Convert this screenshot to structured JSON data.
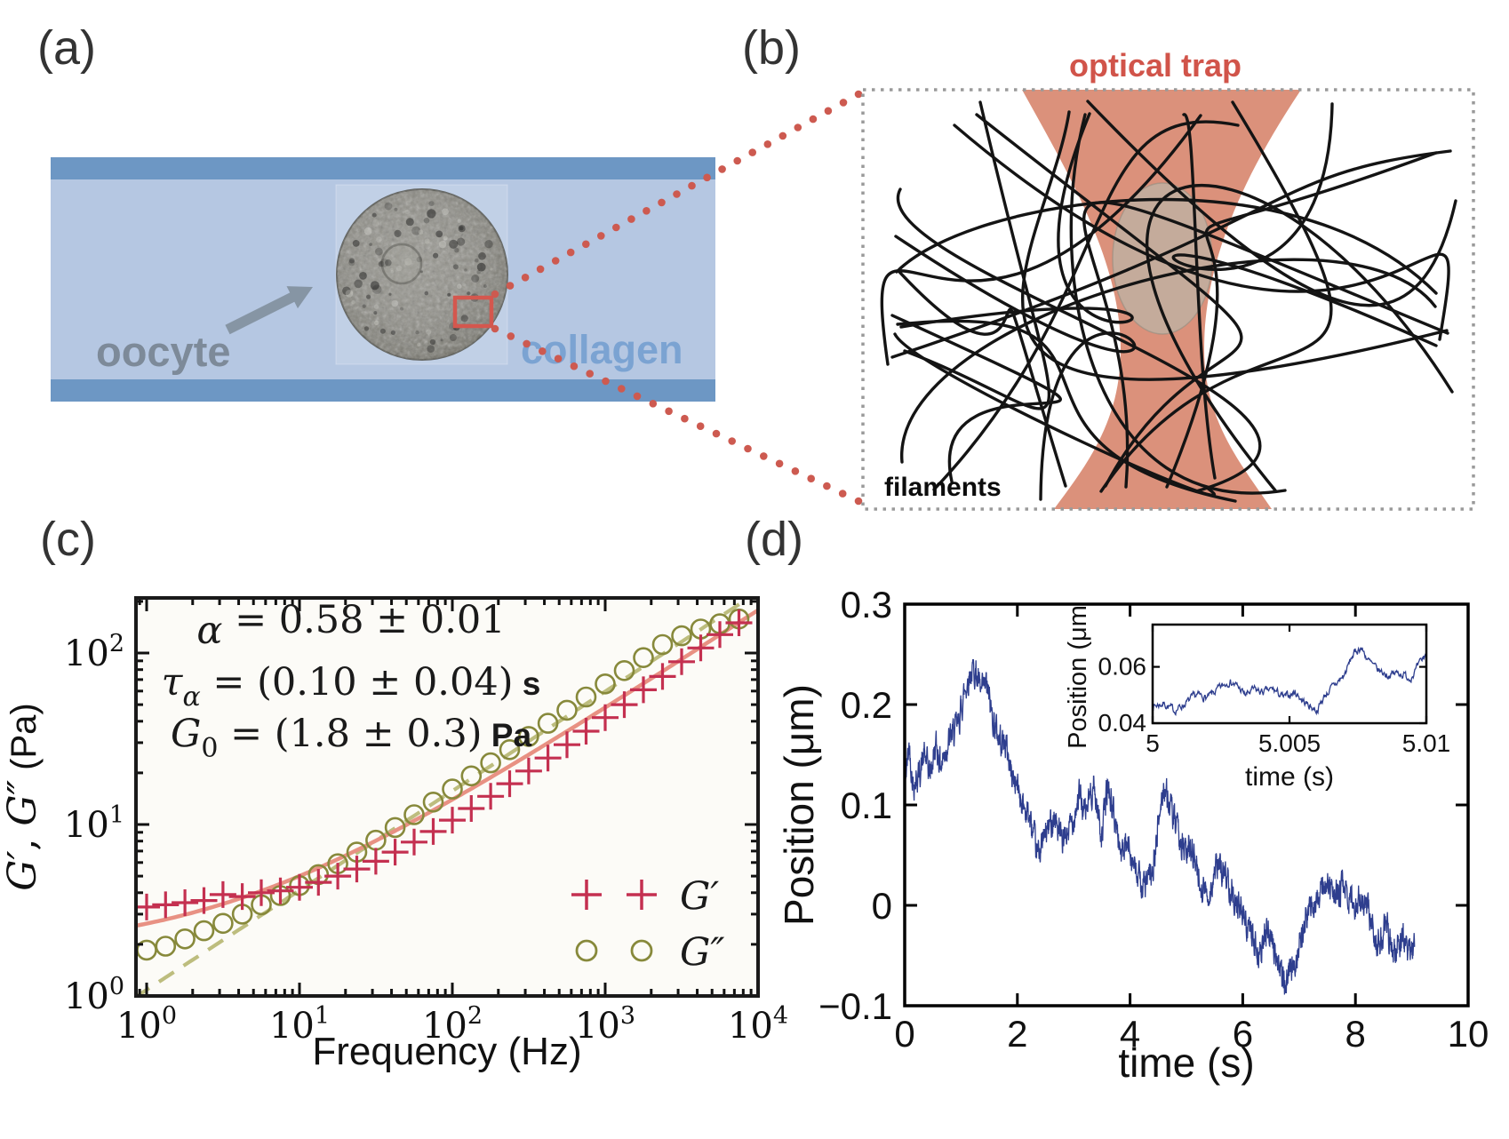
{
  "figure": {
    "background": "#ffffff",
    "panel_labels": {
      "a": "(a)",
      "b": "(b)",
      "c": "(c)",
      "d": "(d)"
    }
  },
  "panel_a": {
    "oocyte_label": "oocyte",
    "collagen_label": "collagen",
    "colors": {
      "channel_wall": "#6d97c4",
      "channel_fill": "#b5c7e2",
      "oocyte_text": "#7d8a99",
      "collagen_text": "#7ba3d2",
      "highlight_box": "#d4574e",
      "connector_dots": "#cd5a50",
      "arrow": "#8695a4"
    }
  },
  "panel_b": {
    "title": "optical trap",
    "filaments_label": "filaments",
    "colors": {
      "title_text": "#d1544a",
      "beam": "#d98b74",
      "bead": "#b6bbae",
      "filament": "#141414",
      "border": "#9a9a9a"
    }
  },
  "chart_data": [
    {
      "id": "moduli_vs_frequency",
      "type": "scatter",
      "x_scale": "log",
      "y_scale": "log",
      "xlabel": "Frequency (Hz)",
      "ylabel": {
        "g_prime": "G′",
        "comma": ", ",
        "g_double_prime": "G″",
        "units": " (Pa)"
      },
      "xlim_Hz": [
        0.85,
        10000
      ],
      "ylim_Pa": [
        1.0,
        210
      ],
      "x_tick_exponents": [
        0,
        1,
        2,
        3,
        4
      ],
      "y_tick_exponents": [
        0,
        1,
        2
      ],
      "annotations": [
        {
          "symbol": "α",
          "subscript": "",
          "value": " = 0.58 ± 0.01",
          "unit": ""
        },
        {
          "symbol": "τ",
          "subscript": "α",
          "value": " = (0.10 ± 0.04)",
          "unit": " s"
        },
        {
          "symbol": "G",
          "subscript": "0",
          "value": " = (1.8 ± 0.3)",
          "unit": " Pa"
        }
      ],
      "fit_parameters": {
        "alpha": 0.58,
        "tau_s": 0.1,
        "G0_Pa": 1.8
      },
      "legend": {
        "position": "lower right",
        "entries": [
          {
            "label": "G′",
            "marker": "cross",
            "color": "#c43050"
          },
          {
            "label": "G″",
            "marker": "circle",
            "color": "#87893b"
          }
        ]
      },
      "series": [
        {
          "name": "G′",
          "marker": "cross",
          "color": "#c43050",
          "fit_line": {
            "style": "solid",
            "color": "#e89183"
          },
          "f_Hz": [
            1.0,
            1.33,
            1.78,
            2.37,
            3.16,
            4.22,
            5.62,
            7.5,
            10,
            13.3,
            17.8,
            23.7,
            31.6,
            42.2,
            56.2,
            75,
            100,
            133,
            178,
            237,
            316,
            422,
            562,
            750,
            1000,
            1334,
            1778,
            2371,
            3162,
            4217,
            5623,
            7499
          ],
          "G_Pa": [
            3.3,
            3.4,
            3.5,
            3.6,
            3.9,
            3.8,
            4.0,
            4.1,
            4.3,
            4.6,
            5.0,
            5.5,
            6.1,
            6.9,
            7.9,
            9.1,
            10.6,
            12.4,
            14.6,
            17.3,
            20.5,
            24.4,
            29.2,
            35,
            42,
            50,
            61,
            73,
            89,
            107,
            128,
            150
          ]
        },
        {
          "name": "G″",
          "marker": "circle",
          "color": "#87893b",
          "fit_line": {
            "style": "dashed",
            "color": "#bdbd7e"
          },
          "f_Hz": [
            1.0,
            1.33,
            1.78,
            2.37,
            3.16,
            4.22,
            5.62,
            7.5,
            10,
            13.3,
            17.8,
            23.7,
            31.6,
            42.2,
            56.2,
            75,
            100,
            133,
            178,
            237,
            316,
            422,
            562,
            750,
            1000,
            1334,
            1778,
            2371,
            3162,
            4217,
            5623,
            7499
          ],
          "G_Pa": [
            1.85,
            1.95,
            2.15,
            2.4,
            2.65,
            3.0,
            3.4,
            3.85,
            4.4,
            5.1,
            5.9,
            6.9,
            8.1,
            9.6,
            11.4,
            13.5,
            16.1,
            19.2,
            22.9,
            27.3,
            32.6,
            38.9,
            46.4,
            55.4,
            66,
            79,
            94,
            112,
            126,
            138,
            148,
            158
          ]
        }
      ]
    },
    {
      "id": "bead_position_trace",
      "type": "line",
      "xlabel": "time (s)",
      "ylabel": "Position (μm)",
      "xlim_s": [
        0,
        10
      ],
      "ylim_um": [
        -0.1,
        0.3
      ],
      "x_tick_values": [
        0,
        2,
        4,
        6,
        8,
        10
      ],
      "x_ticks": [
        "0",
        "2",
        "4",
        "6",
        "8",
        "10"
      ],
      "y_tick_values": [
        -0.1,
        0,
        0.1,
        0.2,
        0.3
      ],
      "y_ticks": [
        "−0.1",
        "0",
        "0.1",
        "0.2",
        "0.3"
      ],
      "line_color": "#2e3e8e",
      "t_end_s": 9.05,
      "noise_band_um": 0.02,
      "anchors": {
        "t_s": [
          0,
          0.08,
          0.15,
          0.25,
          0.35,
          0.45,
          0.55,
          0.65,
          0.75,
          0.85,
          0.95,
          1.05,
          1.15,
          1.25,
          1.35,
          1.45,
          1.55,
          1.65,
          1.8,
          1.9,
          2.0,
          2.1,
          2.2,
          2.35,
          2.5,
          2.65,
          2.8,
          2.95,
          3.1,
          3.2,
          3.35,
          3.5,
          3.6,
          3.75,
          3.85,
          4.0,
          4.1,
          4.25,
          4.4,
          4.5,
          4.6,
          4.7,
          4.85,
          5.0,
          5.1,
          5.25,
          5.4,
          5.55,
          5.7,
          5.85,
          6.0,
          6.15,
          6.3,
          6.45,
          6.6,
          6.75,
          6.9,
          7.05,
          7.2,
          7.35,
          7.5,
          7.65,
          7.8,
          7.95,
          8.1,
          8.25,
          8.4,
          8.55,
          8.7,
          8.85,
          8.95,
          9.05
        ],
        "position_um": [
          0.12,
          0.16,
          0.12,
          0.13,
          0.15,
          0.13,
          0.16,
          0.14,
          0.16,
          0.17,
          0.18,
          0.21,
          0.23,
          0.235,
          0.21,
          0.22,
          0.19,
          0.17,
          0.16,
          0.13,
          0.12,
          0.1,
          0.09,
          0.05,
          0.07,
          0.09,
          0.06,
          0.08,
          0.11,
          0.09,
          0.12,
          0.07,
          0.12,
          0.08,
          0.05,
          0.06,
          0.03,
          0.02,
          0.03,
          0.08,
          0.12,
          0.1,
          0.07,
          0.05,
          0.06,
          0.02,
          0.01,
          0.04,
          0.03,
          0.01,
          -0.01,
          -0.03,
          -0.05,
          -0.02,
          -0.05,
          -0.08,
          -0.06,
          -0.03,
          0.0,
          0.01,
          0.02,
          0.01,
          0.02,
          0.0,
          0.01,
          -0.01,
          -0.04,
          -0.02,
          -0.05,
          -0.03,
          -0.05,
          -0.04
        ]
      }
    },
    {
      "id": "bead_position_trace_inset",
      "type": "line",
      "xlabel": "time (s)",
      "ylabel": "Position (μm",
      "xlim_s": [
        5,
        5.01
      ],
      "ylim_um": [
        0.04,
        0.075
      ],
      "x_tick_values": [
        5,
        5.005,
        5.01
      ],
      "x_ticks": [
        "5",
        "5.005",
        "5.01"
      ],
      "y_tick_values": [
        0.04,
        0.06
      ],
      "y_ticks": [
        "0.04",
        "0.06"
      ],
      "line_color": "#2e3e8e",
      "noise_band_um": 0.002,
      "anchors": {
        "t_s": [
          5.0,
          5.0004,
          5.0008,
          5.0012,
          5.0016,
          5.002,
          5.0024,
          5.0028,
          5.0031,
          5.0034,
          5.0037,
          5.004,
          5.0044,
          5.0048,
          5.0052,
          5.0056,
          5.006,
          5.0063,
          5.0066,
          5.007,
          5.0073,
          5.0076,
          5.0079,
          5.0082,
          5.0086,
          5.009,
          5.0094,
          5.0097,
          5.01
        ],
        "position_um": [
          0.046,
          0.047,
          0.0445,
          0.047,
          0.05,
          0.049,
          0.052,
          0.055,
          0.053,
          0.05,
          0.052,
          0.051,
          0.052,
          0.049,
          0.051,
          0.047,
          0.0445,
          0.05,
          0.053,
          0.057,
          0.064,
          0.067,
          0.062,
          0.059,
          0.057,
          0.058,
          0.056,
          0.06,
          0.065
        ]
      }
    }
  ]
}
